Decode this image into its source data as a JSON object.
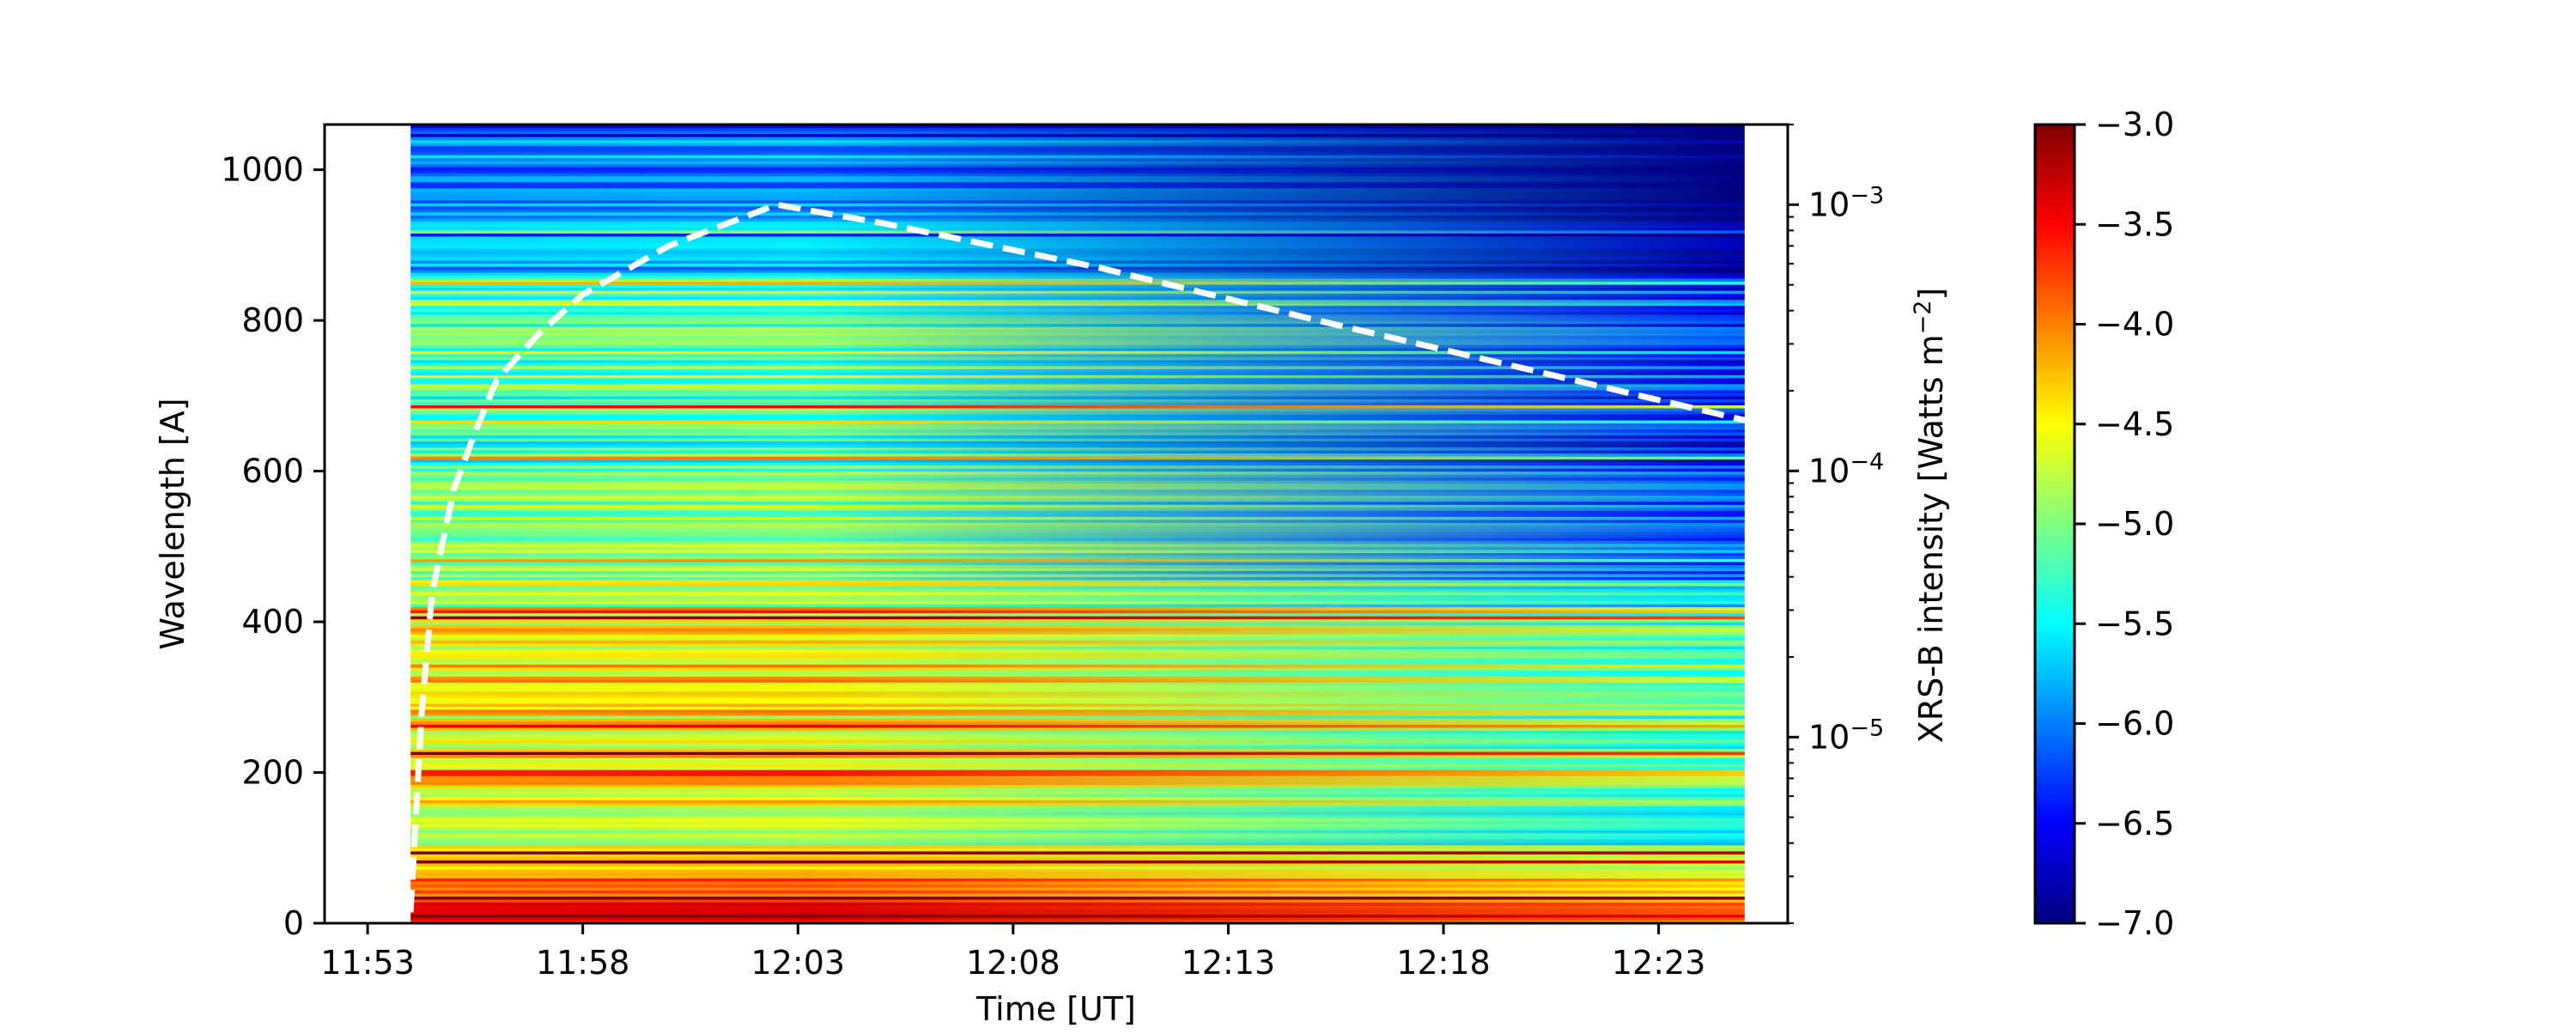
{
  "chart_data": {
    "type": "heatmap",
    "title": "",
    "xlabel": "Time [UT]",
    "ylabel": "Wavelength [A]",
    "y2label": "XRS-B intensity [Watts m",
    "y2label_sup": "−2",
    "y2label_end": "]",
    "xlim": [
      "11:52",
      "12:26"
    ],
    "data_time_range": [
      "11:54",
      "12:25"
    ],
    "ylim": [
      0,
      1060
    ],
    "y2lim": [
      2e-06,
      0.002
    ],
    "y2scale": "log",
    "colormap": "jet",
    "color_range": [
      -7.0,
      -3.0
    ],
    "x_ticks": [
      "11:53",
      "11:58",
      "12:03",
      "12:08",
      "12:13",
      "12:18",
      "12:23"
    ],
    "y_ticks": [
      "0",
      "200",
      "400",
      "600",
      "800",
      "1000"
    ],
    "y2_ticks": [
      {
        "value": 1e-05,
        "base": "10",
        "exp": "−5"
      },
      {
        "value": 0.0001,
        "base": "10",
        "exp": "−4"
      },
      {
        "value": 0.001,
        "base": "10",
        "exp": "−3"
      }
    ],
    "colorbar_ticks": [
      "−3.0",
      "−3.5",
      "−4.0",
      "−4.5",
      "−5.0",
      "−5.5",
      "−6.0",
      "−6.5",
      "−7.0"
    ],
    "colorbar_values": [
      -3.0,
      -3.5,
      -4.0,
      -4.5,
      -5.0,
      -5.5,
      -6.0,
      -6.5,
      -7.0
    ],
    "xrs_b_series": {
      "style": "dashed",
      "color": "#ffffff",
      "time": [
        "11:54:00",
        "11:54:15",
        "11:54:30",
        "11:55:00",
        "11:55:30",
        "11:56:00",
        "11:57:00",
        "11:58:00",
        "12:00:00",
        "12:02:30",
        "12:05:00",
        "12:10:00",
        "12:15:00",
        "12:20:00",
        "12:25:00"
      ],
      "value": [
        2.2e-06,
        1.2e-05,
        3.5e-05,
        8.5e-05,
        0.00014,
        0.00022,
        0.00033,
        0.00046,
        0.0007,
        0.001,
        0.00085,
        0.00058,
        0.00037,
        0.00024,
        0.000155
      ]
    }
  }
}
